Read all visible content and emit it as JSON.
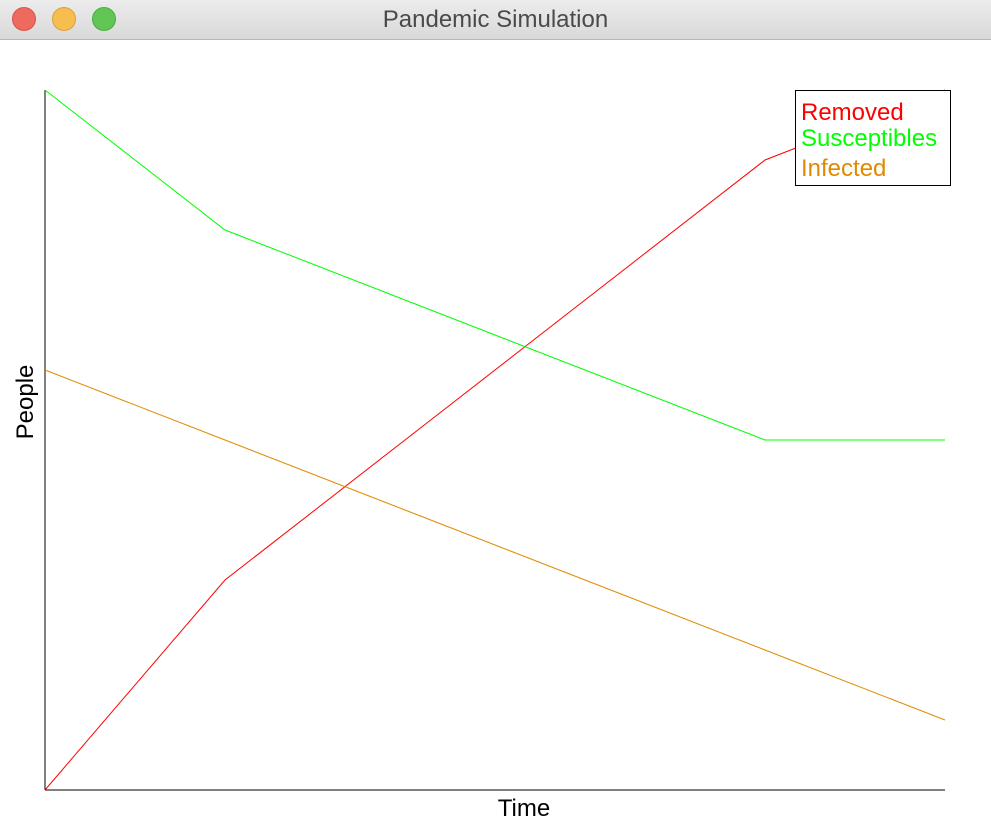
{
  "window": {
    "title": "Pandemic Simulation"
  },
  "chart_data": {
    "type": "line",
    "title": "",
    "xlabel": "Time",
    "ylabel": "People",
    "x": [
      0,
      1,
      2,
      3,
      4,
      5
    ],
    "xlim": [
      0,
      5
    ],
    "ylim": [
      0,
      100
    ],
    "grid": false,
    "legend_position": "top-right",
    "series": [
      {
        "name": "Removed",
        "color": "#ff0000",
        "values": [
          0,
          30,
          50,
          70,
          90,
          100
        ]
      },
      {
        "name": "Susceptibles",
        "color": "#00ff00",
        "values": [
          100,
          80,
          70,
          60,
          50,
          50
        ]
      },
      {
        "name": "Infected",
        "color": "#e08a00",
        "values": [
          60,
          50,
          40,
          30,
          20,
          10
        ]
      }
    ]
  }
}
